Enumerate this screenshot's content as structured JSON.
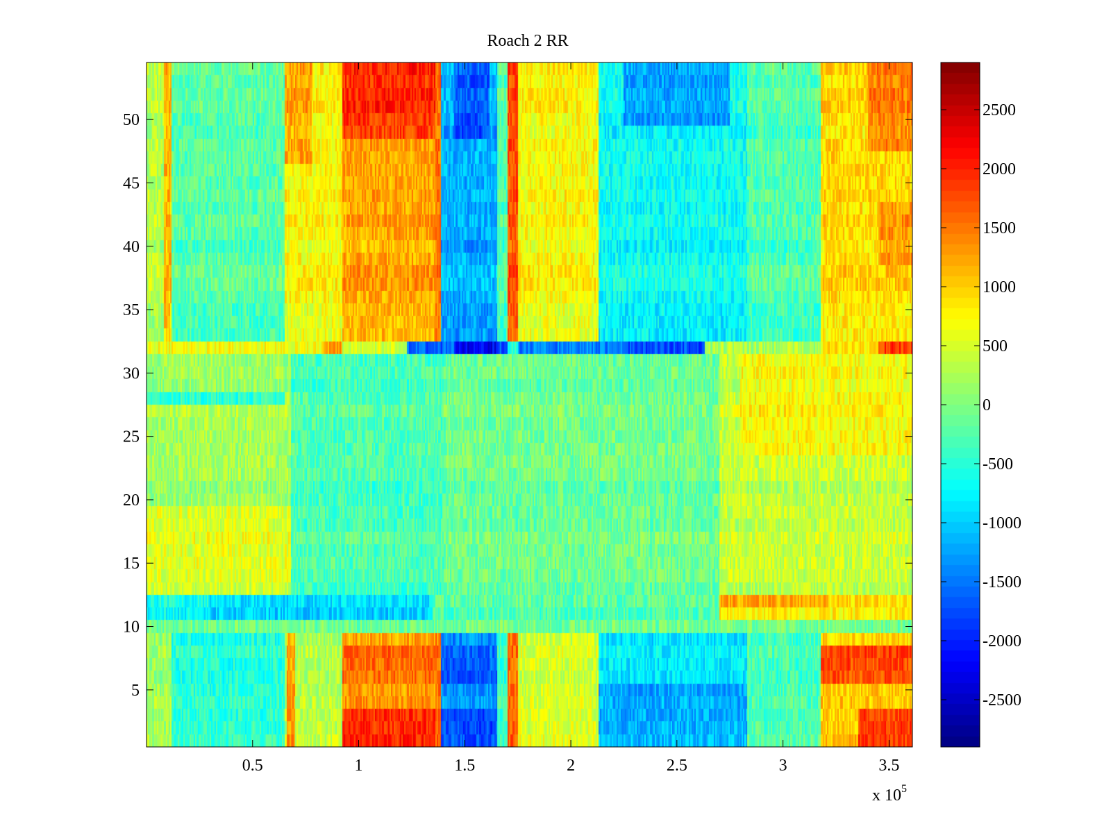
{
  "chart_data": {
    "type": "heatmap",
    "title": "Roach 2 RR",
    "colormap": "jet",
    "x_range": [
      0,
      361000
    ],
    "y_range": [
      0.5,
      54.5
    ],
    "rows": 54,
    "x_multiplier_label": {
      "prefix": "x 10",
      "exponent": "5"
    },
    "x_ticks": [
      {
        "value": 50000,
        "label": "0.5"
      },
      {
        "value": 100000,
        "label": "1"
      },
      {
        "value": 150000,
        "label": "1.5"
      },
      {
        "value": 200000,
        "label": "2"
      },
      {
        "value": 250000,
        "label": "2.5"
      },
      {
        "value": 300000,
        "label": "3"
      },
      {
        "value": 350000,
        "label": "3.5"
      }
    ],
    "y_ticks": [
      {
        "value": 5,
        "label": "5"
      },
      {
        "value": 10,
        "label": "10"
      },
      {
        "value": 15,
        "label": "15"
      },
      {
        "value": 20,
        "label": "20"
      },
      {
        "value": 25,
        "label": "25"
      },
      {
        "value": 30,
        "label": "30"
      },
      {
        "value": 35,
        "label": "35"
      },
      {
        "value": 40,
        "label": "40"
      },
      {
        "value": 45,
        "label": "45"
      },
      {
        "value": 50,
        "label": "50"
      }
    ],
    "colorbar": {
      "range": [
        -2900,
        2900
      ],
      "ticks": [
        {
          "value": 2500,
          "label": "2500"
        },
        {
          "value": 2000,
          "label": "2000"
        },
        {
          "value": 1500,
          "label": "1500"
        },
        {
          "value": 1000,
          "label": "1000"
        },
        {
          "value": 500,
          "label": "500"
        },
        {
          "value": 0,
          "label": "0"
        },
        {
          "value": -500,
          "label": "-500"
        },
        {
          "value": -1000,
          "label": "-1000"
        },
        {
          "value": -1500,
          "label": "-1500"
        },
        {
          "value": -2000,
          "label": "-2000"
        },
        {
          "value": -2500,
          "label": "-2500"
        }
      ]
    },
    "value_regions": [
      {
        "rows": [
          33,
          54
        ],
        "x": [
          0,
          8000
        ],
        "value": 300
      },
      {
        "rows": [
          33,
          54
        ],
        "x": [
          8000,
          12000
        ],
        "value": 1100
      },
      {
        "rows": [
          33,
          54
        ],
        "x": [
          12000,
          65000
        ],
        "value": -250
      },
      {
        "rows": [
          33,
          54
        ],
        "x": [
          65000,
          92000
        ],
        "value": 700
      },
      {
        "rows": [
          47,
          54
        ],
        "x": [
          65000,
          78000
        ],
        "value": 1200
      },
      {
        "rows": [
          33,
          54
        ],
        "x": [
          92000,
          136000
        ],
        "value": 1200
      },
      {
        "rows": [
          49,
          54
        ],
        "x": [
          92000,
          136000
        ],
        "value": 1900
      },
      {
        "rows": [
          33,
          54
        ],
        "x": [
          136000,
          139000
        ],
        "value": 1500
      },
      {
        "rows": [
          33,
          54
        ],
        "x": [
          139000,
          165000
        ],
        "value": -1200
      },
      {
        "rows": [
          49,
          54
        ],
        "x": [
          145000,
          162000
        ],
        "value": -1700
      },
      {
        "rows": [
          33,
          54
        ],
        "x": [
          165000,
          170000
        ],
        "value": -300
      },
      {
        "rows": [
          33,
          54
        ],
        "x": [
          170000,
          175000
        ],
        "value": 1700
      },
      {
        "rows": [
          33,
          54
        ],
        "x": [
          175000,
          213000
        ],
        "value": 700
      },
      {
        "rows": [
          33,
          54
        ],
        "x": [
          213000,
          283000
        ],
        "value": -700
      },
      {
        "rows": [
          50,
          54
        ],
        "x": [
          225000,
          275000
        ],
        "value": -1300
      },
      {
        "rows": [
          33,
          54
        ],
        "x": [
          283000,
          318000
        ],
        "value": -300
      },
      {
        "rows": [
          33,
          54
        ],
        "x": [
          318000,
          361000
        ],
        "value": 900
      },
      {
        "rows": [
          48,
          54
        ],
        "x": [
          340000,
          361000
        ],
        "value": 1400
      },
      {
        "rows": [
          39,
          43
        ],
        "x": [
          345000,
          361000
        ],
        "value": 1300
      },
      {
        "rows": [
          32,
          32
        ],
        "x": [
          0,
          92000
        ],
        "value": 700
      },
      {
        "rows": [
          32,
          32
        ],
        "x": [
          83000,
          92000
        ],
        "value": 1300
      },
      {
        "rows": [
          32,
          32
        ],
        "x": [
          92000,
          123000
        ],
        "value": 500
      },
      {
        "rows": [
          32,
          32
        ],
        "x": [
          123000,
          170000
        ],
        "value": -1600
      },
      {
        "rows": [
          32,
          32
        ],
        "x": [
          145000,
          165000
        ],
        "value": -2200
      },
      {
        "rows": [
          32,
          32
        ],
        "x": [
          170000,
          175000
        ],
        "value": -500
      },
      {
        "rows": [
          32,
          32
        ],
        "x": [
          175000,
          263000
        ],
        "value": -1400
      },
      {
        "rows": [
          32,
          32
        ],
        "x": [
          225000,
          263000
        ],
        "value": -1700
      },
      {
        "rows": [
          32,
          32
        ],
        "x": [
          263000,
          318000
        ],
        "value": 300
      },
      {
        "rows": [
          32,
          32
        ],
        "x": [
          318000,
          361000
        ],
        "value": 900
      },
      {
        "rows": [
          32,
          32
        ],
        "x": [
          345000,
          361000
        ],
        "value": 1900
      },
      {
        "rows": [
          13,
          31
        ],
        "x": [
          0,
          68000
        ],
        "value": 200
      },
      {
        "rows": [
          13,
          31
        ],
        "x": [
          68000,
          140000
        ],
        "value": -300
      },
      {
        "rows": [
          13,
          31
        ],
        "x": [
          140000,
          270000
        ],
        "value": -100
      },
      {
        "rows": [
          13,
          31
        ],
        "x": [
          270000,
          361000
        ],
        "value": 400
      },
      {
        "rows": [
          24,
          31
        ],
        "x": [
          280000,
          361000
        ],
        "value": 700
      },
      {
        "rows": [
          28,
          28
        ],
        "x": [
          0,
          65000
        ],
        "value": -500
      },
      {
        "rows": [
          13,
          19
        ],
        "x": [
          0,
          68000
        ],
        "value": 550
      },
      {
        "rows": [
          11,
          12
        ],
        "x": [
          0,
          30000
        ],
        "value": -700
      },
      {
        "rows": [
          11,
          12
        ],
        "x": [
          30000,
          135000
        ],
        "value": -1000
      },
      {
        "rows": [
          11,
          12
        ],
        "x": [
          135000,
          270000
        ],
        "value": -300
      },
      {
        "rows": [
          11,
          12
        ],
        "x": [
          270000,
          361000
        ],
        "value": 800
      },
      {
        "rows": [
          12,
          12
        ],
        "x": [
          270000,
          320000
        ],
        "value": 1100
      },
      {
        "rows": [
          9,
          10
        ],
        "x": [
          0,
          361000
        ],
        "value": 0
      },
      {
        "rows": [
          1,
          9
        ],
        "x": [
          0,
          12000
        ],
        "value": 200
      },
      {
        "rows": [
          1,
          9
        ],
        "x": [
          12000,
          65000
        ],
        "value": -500
      },
      {
        "rows": [
          1,
          9
        ],
        "x": [
          65000,
          92000
        ],
        "value": 300
      },
      {
        "rows": [
          1,
          9
        ],
        "x": [
          66000,
          70000
        ],
        "value": 1300
      },
      {
        "rows": [
          1,
          9
        ],
        "x": [
          92000,
          136000
        ],
        "value": 1300
      },
      {
        "rows": [
          1,
          3
        ],
        "x": [
          92000,
          136000
        ],
        "value": 1900
      },
      {
        "rows": [
          6,
          8
        ],
        "x": [
          92000,
          136000
        ],
        "value": 1600
      },
      {
        "rows": [
          1,
          9
        ],
        "x": [
          136000,
          139000
        ],
        "value": 1500
      },
      {
        "rows": [
          1,
          9
        ],
        "x": [
          139000,
          165000
        ],
        "value": -1300
      },
      {
        "rows": [
          1,
          3
        ],
        "x": [
          139000,
          165000
        ],
        "value": -1800
      },
      {
        "rows": [
          6,
          8
        ],
        "x": [
          139000,
          165000
        ],
        "value": -1600
      },
      {
        "rows": [
          1,
          9
        ],
        "x": [
          165000,
          170000
        ],
        "value": -400
      },
      {
        "rows": [
          1,
          9
        ],
        "x": [
          170000,
          175000
        ],
        "value": 1600
      },
      {
        "rows": [
          1,
          9
        ],
        "x": [
          175000,
          213000
        ],
        "value": 500
      },
      {
        "rows": [
          1,
          9
        ],
        "x": [
          213000,
          283000
        ],
        "value": -800
      },
      {
        "rows": [
          1,
          5
        ],
        "x": [
          213000,
          283000
        ],
        "value": -1200
      },
      {
        "rows": [
          1,
          9
        ],
        "x": [
          283000,
          318000
        ],
        "value": -300
      },
      {
        "rows": [
          1,
          9
        ],
        "x": [
          318000,
          361000
        ],
        "value": 1000
      },
      {
        "rows": [
          6,
          8
        ],
        "x": [
          318000,
          361000
        ],
        "value": 1800
      },
      {
        "rows": [
          1,
          3
        ],
        "x": [
          335000,
          361000
        ],
        "value": 1800
      }
    ]
  }
}
